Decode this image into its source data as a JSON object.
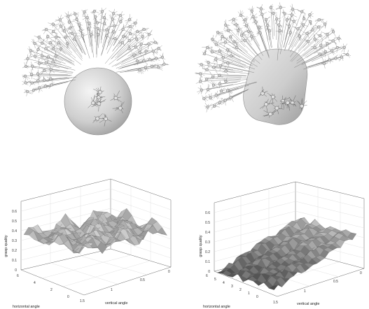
{
  "colors": {
    "background": "#ffffff",
    "axis_line": "#555555",
    "grid_line": "#d8d8d8",
    "sphere_light": "#f2f2f2",
    "sphere_dark": "#a8a8a8",
    "grasp_line": "#6e6e6e",
    "node_fill": "#cfcfcf",
    "surface_light": "#f0f0f0",
    "surface_dark": "#1e1e1e"
  },
  "icons": {
    "top_left": "grasp-hemisphere-around-sphere",
    "top_right": "grasp-hemisphere-around-rounded-box"
  },
  "plots": {
    "left": {
      "zlabel": "grasp quality",
      "xlabel": "horizontal angle",
      "ylabel": "vertical angle",
      "zticks": [
        "0",
        "0.1",
        "0.2",
        "0.3",
        "0.4",
        "0.5",
        "0.6"
      ],
      "xticks": [
        "0",
        "2",
        "4",
        "6"
      ],
      "yticks": [
        "1.5",
        "1",
        "0.5",
        "0"
      ]
    },
    "right": {
      "zlabel": "grasp quality",
      "xlabel": "horizontal angle",
      "ylabel": "vertical angle",
      "zticks": [
        "0",
        "0.1",
        "0.2",
        "0.3",
        "0.4",
        "0.5",
        "0.6"
      ],
      "xticks": [
        "0",
        "1",
        "2",
        "3",
        "4",
        "5",
        "6"
      ],
      "yticks": [
        "1.5",
        "1",
        "0.5",
        "0"
      ]
    }
  }
}
